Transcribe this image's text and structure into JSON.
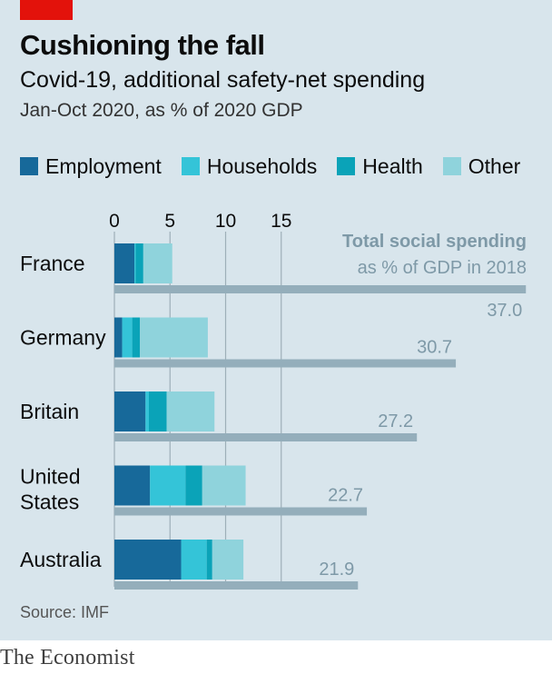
{
  "header": {
    "title": "Cushioning the fall",
    "subtitle": "Covid-19, additional safety-net spending",
    "subsubtitle": "Jan-Oct 2020, as % of 2020 GDP"
  },
  "colors": {
    "employment": "#17699a",
    "households": "#34c4d8",
    "health": "#0aa3b8",
    "other": "#8fd3dc",
    "total": "#94aebb",
    "total_text": "#7e99a7",
    "grid": "#9eafb8",
    "accent": "#e3120b"
  },
  "annotation": {
    "line1": "Total social spending",
    "line2": "as % of GDP in 2018"
  },
  "chart_data": {
    "type": "bar",
    "orientation": "horizontal",
    "stacked": true,
    "title": "Cushioning the fall",
    "subtitle": "Covid-19, additional safety-net spending",
    "xlabel": "",
    "ylabel": "",
    "xlim": [
      0,
      37.5
    ],
    "xticks": [
      0,
      5,
      10,
      15
    ],
    "grid": true,
    "legend_position": "top",
    "categories": [
      "France",
      "Germany",
      "Britain",
      "United States",
      "Australia"
    ],
    "category_lines": [
      [
        "France"
      ],
      [
        "Germany"
      ],
      [
        "Britain"
      ],
      [
        "United",
        "States"
      ],
      [
        "Australia"
      ]
    ],
    "series": [
      {
        "name": "Employment",
        "key": "employment",
        "values": [
          1.8,
          0.7,
          2.8,
          3.2,
          6.0
        ]
      },
      {
        "name": "Households",
        "key": "households",
        "values": [
          0.1,
          0.9,
          0.3,
          3.2,
          2.3
        ]
      },
      {
        "name": "Health",
        "key": "health",
        "values": [
          0.7,
          0.7,
          1.6,
          1.5,
          0.5
        ]
      },
      {
        "name": "Other",
        "key": "other",
        "values": [
          2.6,
          6.1,
          4.3,
          3.9,
          2.8
        ]
      }
    ],
    "total_social_spending": {
      "name": "Total social spending as % of GDP in 2018",
      "values": [
        37.0,
        30.7,
        27.2,
        22.7,
        21.9
      ],
      "labels": [
        "37.0",
        "30.7",
        "27.2",
        "22.7",
        "21.9"
      ]
    }
  },
  "footer": {
    "source": "Source: IMF",
    "brand": "The Economist"
  }
}
